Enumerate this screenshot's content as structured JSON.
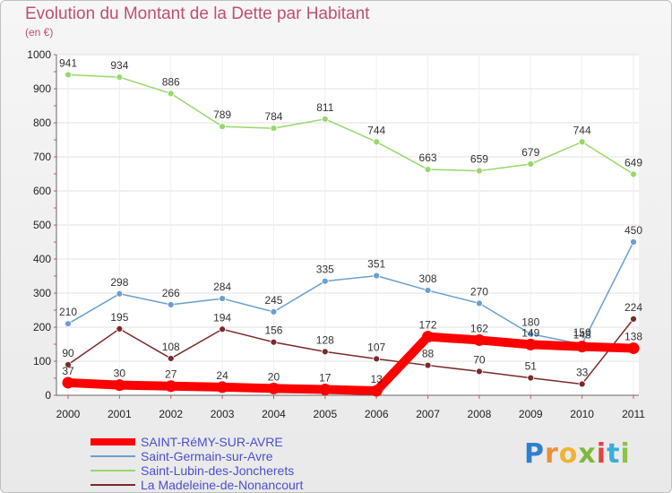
{
  "header": {
    "title": "Evolution du Montant de la Dette par Habitant",
    "subtitle": "(en €)"
  },
  "brand": {
    "letters": [
      "P",
      "r",
      "o",
      "x",
      "i",
      "t",
      "i"
    ],
    "colors": [
      "#2f7fd0",
      "#e8903a",
      "#f0b432",
      "#7fb93a",
      "#e0443e",
      "#3aaed8",
      "#8bc34a"
    ]
  },
  "chart_data": {
    "type": "line",
    "categories": [
      "2000",
      "2001",
      "2002",
      "2003",
      "2004",
      "2005",
      "2006",
      "2007",
      "2008",
      "2009",
      "2010",
      "2011"
    ],
    "ylim": [
      0,
      1000
    ],
    "yticks": [
      0,
      100,
      200,
      300,
      400,
      500,
      600,
      700,
      800,
      900,
      1000
    ],
    "grid": true,
    "legend_position": "bottom-left",
    "series": [
      {
        "name": "SAINT-RéMY-SUR-AVRE",
        "color": "#ff0000",
        "highlight": true,
        "values": [
          37,
          30,
          27,
          24,
          20,
          17,
          13,
          172,
          162,
          149,
          143,
          138
        ]
      },
      {
        "name": "Saint-Germain-sur-Avre",
        "color": "#6a9fcf",
        "values": [
          210,
          298,
          266,
          284,
          245,
          335,
          351,
          308,
          270,
          180,
          150,
          450
        ]
      },
      {
        "name": "Saint-Lubin-des-Joncherets",
        "color": "#97d86a",
        "values": [
          941,
          934,
          886,
          789,
          784,
          811,
          744,
          663,
          659,
          679,
          744,
          649
        ]
      },
      {
        "name": "La Madeleine-de-Nonancourt",
        "color": "#7a2a2a",
        "values": [
          90,
          195,
          108,
          194,
          156,
          128,
          107,
          88,
          70,
          51,
          33,
          224
        ]
      }
    ]
  }
}
